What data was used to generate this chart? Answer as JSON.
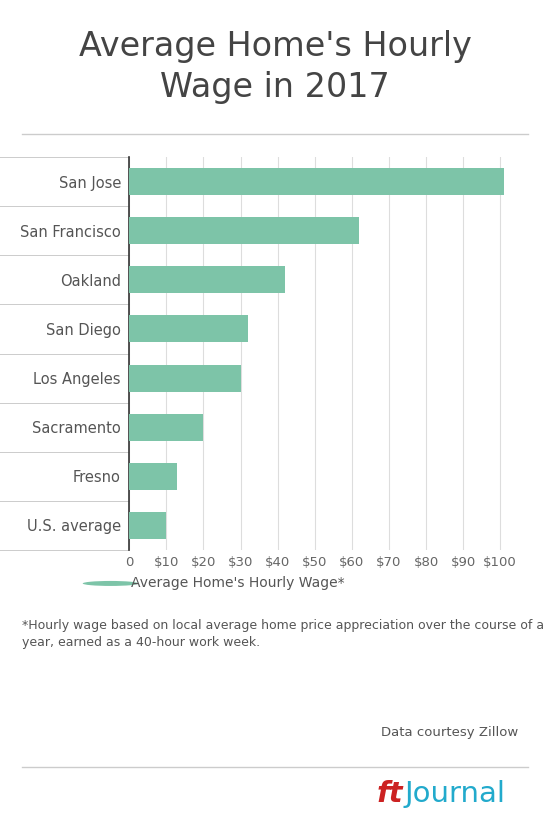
{
  "title": "Average Home's Hourly\nWage in 2017",
  "categories": [
    "San Jose",
    "San Francisco",
    "Oakland",
    "San Diego",
    "Los Angeles",
    "Sacramento",
    "Fresno",
    "U.S. average"
  ],
  "values": [
    101,
    62,
    42,
    32,
    30,
    20,
    13,
    10
  ],
  "bar_color": "#7dc4a8",
  "background_color": "#ffffff",
  "title_color": "#444444",
  "axis_label_color": "#555555",
  "tick_label_color": "#666666",
  "legend_label": "Average Home's Hourly Wage*",
  "footnote": "*Hourly wage based on local average home price appreciation over the course of a\nyear, earned as a 40-hour work week.",
  "source": "Data courtesy Zillow",
  "xticks": [
    0,
    10,
    20,
    30,
    40,
    50,
    60,
    70,
    80,
    90,
    100
  ],
  "xtick_labels": [
    "0",
    "$10",
    "$20",
    "$30",
    "$40",
    "$50",
    "$60",
    "$70",
    "$80",
    "$90",
    "$100"
  ],
  "xlim": [
    0,
    106
  ],
  "brand_ft_color": "#cc2222",
  "brand_journal_color": "#22aacc",
  "title_fontsize": 24,
  "bar_height": 0.55
}
